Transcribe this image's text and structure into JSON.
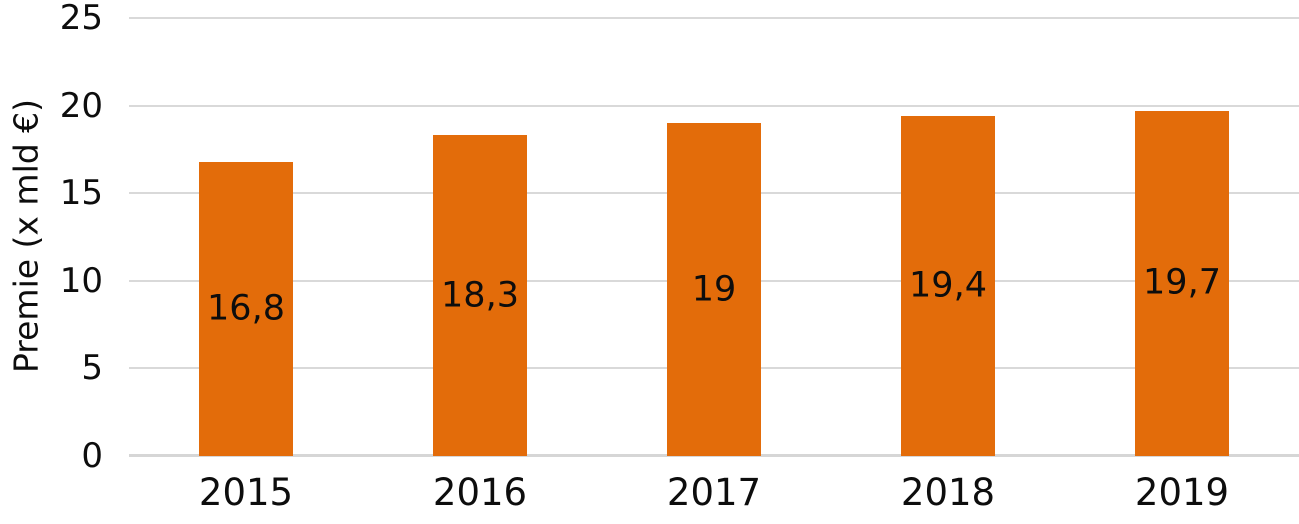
{
  "chart_data": {
    "type": "bar",
    "title": "",
    "xlabel": "",
    "ylabel": "Premie (x mld €)",
    "categories": [
      "2015",
      "2016",
      "2017",
      "2018",
      "2019"
    ],
    "values": [
      16.8,
      18.3,
      19,
      19.4,
      19.7
    ],
    "value_labels": [
      "16,8",
      "18,3",
      "19",
      "19,4",
      "19,7"
    ],
    "yticks": [
      0,
      5,
      10,
      15,
      20,
      25
    ],
    "ylim": [
      0,
      25
    ],
    "grid": "horizontal",
    "legend_position": "none",
    "value_label_position": "inside-center",
    "colors": {
      "bar": "#E36C0A",
      "gridline": "#D9D9D9",
      "axis_line": "#D6D6D6",
      "text": "#0D0D0D",
      "background": "#FFFFFF"
    }
  }
}
